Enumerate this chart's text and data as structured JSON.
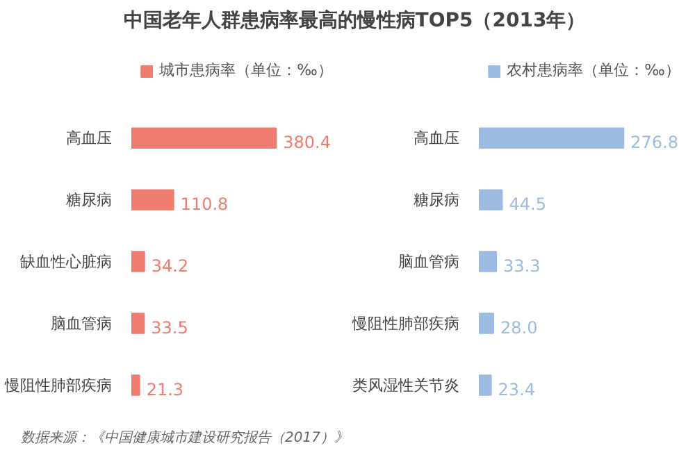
{
  "chart_data": [
    {
      "type": "bar",
      "orientation": "horizontal",
      "title": "中国老年人群患病率最高的慢性病TOP5（2013年）",
      "categories": [
        "高血压",
        "糖尿病",
        "缺血性心脏病",
        "脑血管病",
        "慢阻性肺部疾病"
      ],
      "series": [
        {
          "name": "城市患病率（单位：‰）",
          "color": "#f07c6f",
          "values": [
            380.4,
            110.8,
            34.2,
            33.5,
            21.3
          ],
          "value_labels": [
            "380.4",
            "110.8",
            "34.2",
            "33.5",
            "21.3"
          ]
        }
      ],
      "legend": "top"
    },
    {
      "type": "bar",
      "orientation": "horizontal",
      "categories": [
        "高血压",
        "糖尿病",
        "脑血管病",
        "慢阻性肺部疾病",
        "类风湿性关节炎"
      ],
      "series": [
        {
          "name": "农村患病率（单位：‰）",
          "color": "#9dbbe1",
          "values": [
            276.8,
            44.5,
            33.3,
            28.0,
            23.4
          ],
          "value_labels": [
            "276.8",
            "44.5",
            "33.3",
            "28.0",
            "23.4"
          ]
        }
      ],
      "legend": "top",
      "annotations": [
        "数据来源：《中国健康城市建设研究报告（2017）》"
      ]
    }
  ]
}
